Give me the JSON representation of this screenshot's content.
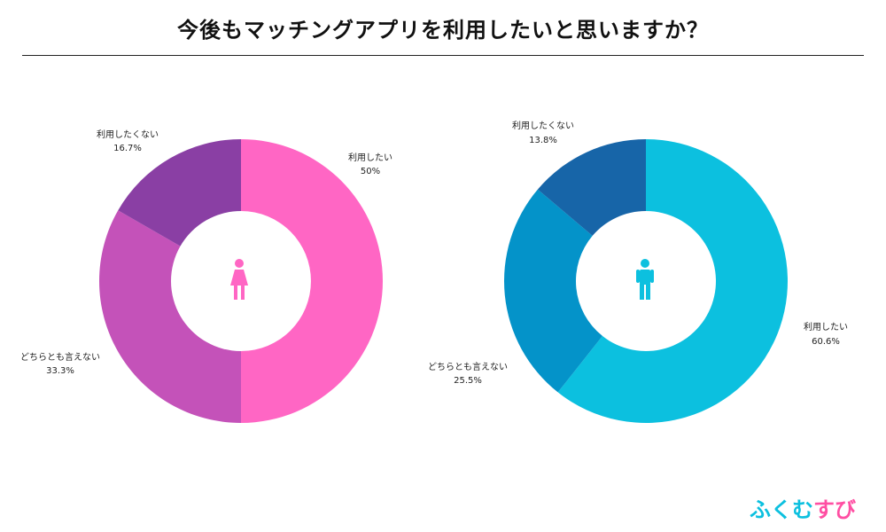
{
  "title": "今後もマッチングアプリを利用したいと思いますか？",
  "logo_text": "ふくむすび",
  "chart_data": [
    {
      "type": "pie",
      "donut": true,
      "center_icon": "female-icon",
      "categories": [
        "利用したい",
        "どちらとも言えない",
        "利用したくない"
      ],
      "values": [
        50,
        33.3,
        16.7
      ],
      "value_labels": [
        "50%",
        "33.3%",
        "16.7%"
      ],
      "colors": [
        "#ff66c4",
        "#c452b9",
        "#8a3fa4"
      ],
      "icon_color": "#ff66c4",
      "start": "12 o'clock",
      "direction": "clockwise"
    },
    {
      "type": "pie",
      "donut": true,
      "center_icon": "male-icon",
      "categories": [
        "利用したい",
        "どちらとも言えない",
        "利用したくない"
      ],
      "values": [
        60.6,
        25.5,
        13.8
      ],
      "value_labels": [
        "60.6%",
        "25.5%",
        "13.8%"
      ],
      "colors": [
        "#0cc0df",
        "#0493c9",
        "#1765a8"
      ],
      "icon_color": "#0cc0df",
      "start": "12 o'clock",
      "direction": "clockwise"
    }
  ]
}
